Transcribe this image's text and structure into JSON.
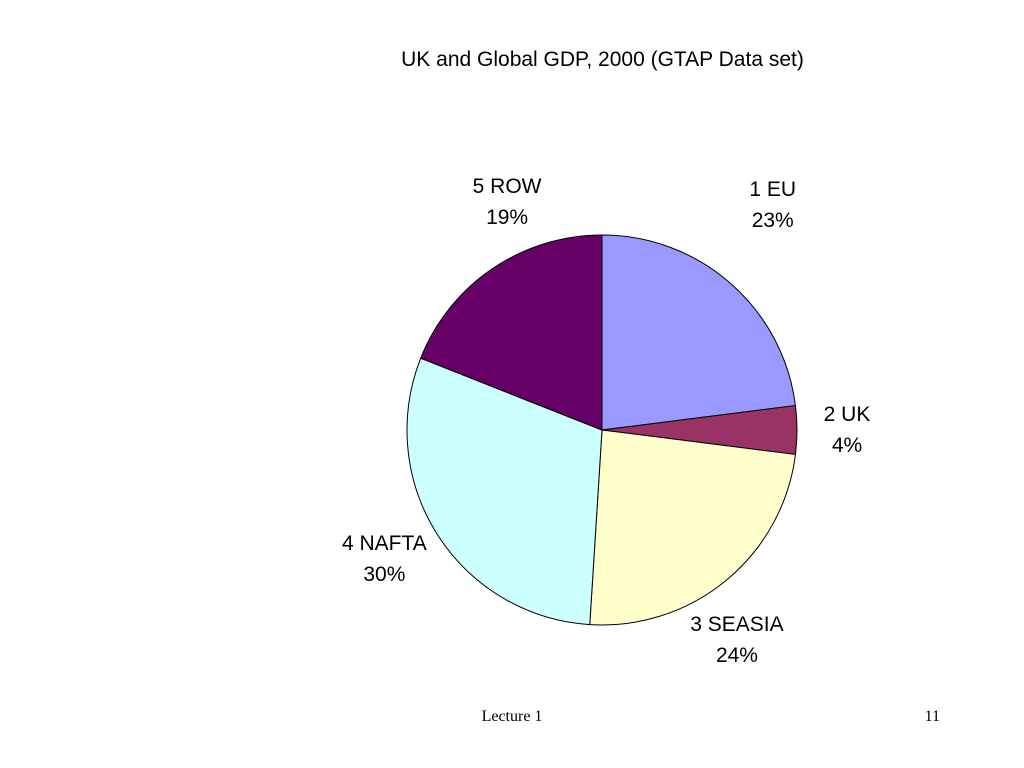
{
  "chart_data": {
    "type": "pie",
    "title": "UK and Global GDP, 2000 (GTAP Data set)",
    "categories": [
      "1 EU",
      "2 UK",
      "3 SEASIA",
      "4 NAFTA",
      "5 ROW"
    ],
    "values": [
      23,
      4,
      24,
      30,
      19
    ],
    "value_labels": [
      "23%",
      "4%",
      "24%",
      "30%",
      "19%"
    ],
    "colors": [
      "#9999FF",
      "#993366",
      "#FFFFCC",
      "#CCFFFF",
      "#660066"
    ],
    "legend": "none"
  },
  "footer": {
    "left_text": "Lecture 1",
    "page_number": "11"
  }
}
